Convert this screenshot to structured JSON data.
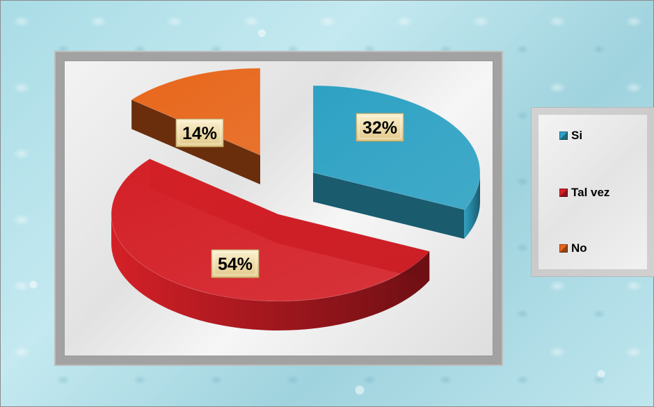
{
  "chart_data": {
    "type": "pie",
    "title": "",
    "categories": [
      "Si",
      "Tal vez",
      "No"
    ],
    "values": [
      32,
      54,
      14
    ],
    "data_labels": [
      "32%",
      "54%",
      "14%"
    ],
    "colors": [
      "#2ea2c4",
      "#d42027",
      "#e8661a"
    ],
    "side_colors": [
      "#1a5b6e",
      "#6e0f14",
      "#6a2e0d"
    ],
    "exploded": true,
    "style": "3d",
    "legend_position": "right"
  },
  "legend": {
    "items": [
      {
        "label": "Si",
        "color": "#2ea2c4"
      },
      {
        "label": "Tal vez",
        "color": "#d42027"
      },
      {
        "label": "No",
        "color": "#e8661a"
      }
    ]
  }
}
